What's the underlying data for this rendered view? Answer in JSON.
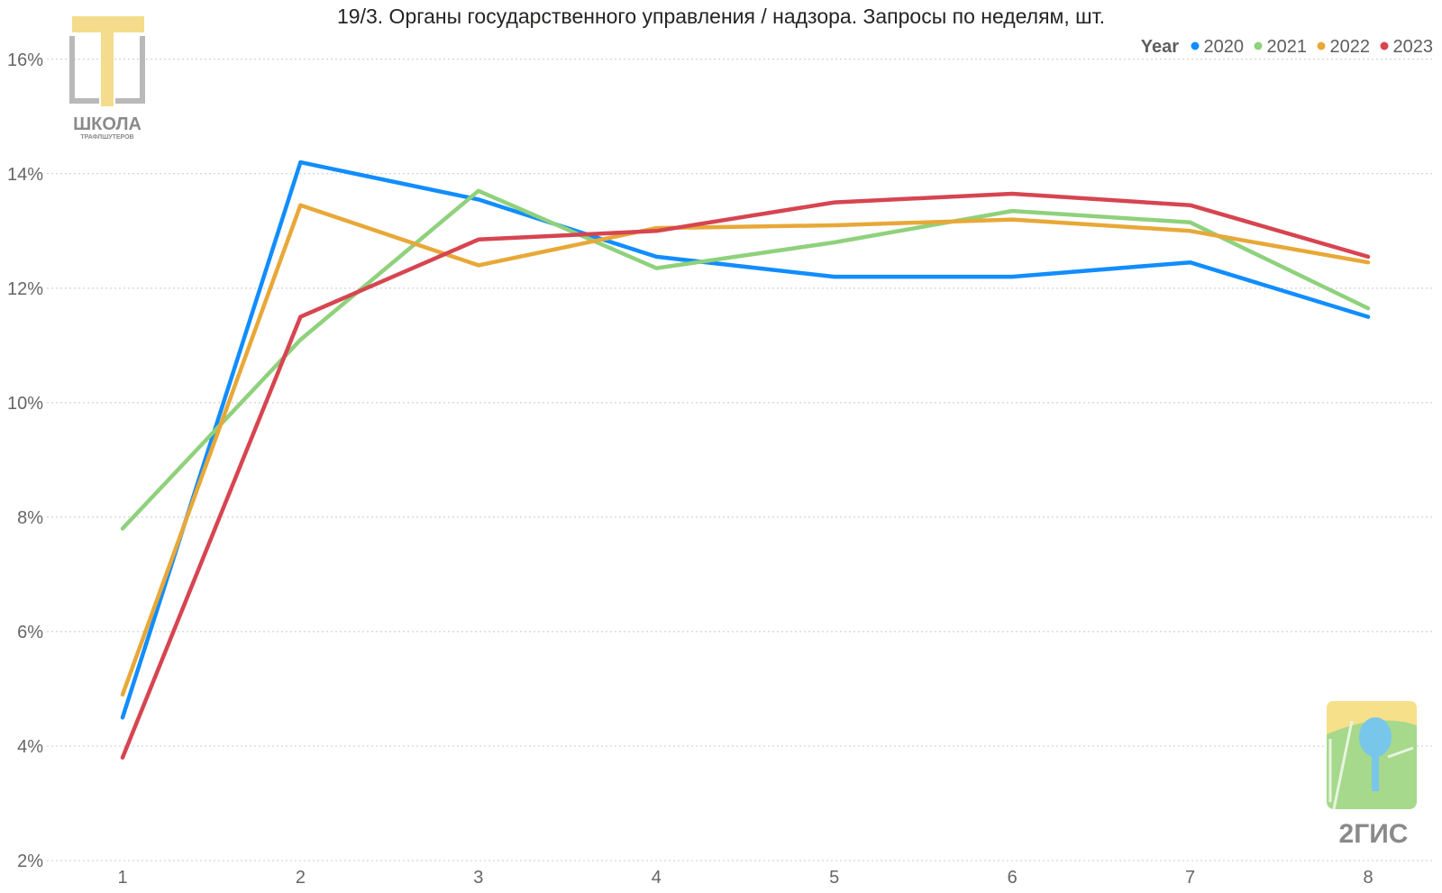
{
  "chart_data": {
    "type": "line",
    "title": "19/3. Органы государственного управления / надзора. Запросы по неделям, шт.",
    "xlabel": "",
    "ylabel": "",
    "x": [
      1,
      2,
      3,
      4,
      5,
      6,
      7,
      8
    ],
    "ylim": [
      2,
      16.5
    ],
    "yticks": [
      2,
      4,
      6,
      8,
      10,
      12,
      14,
      16
    ],
    "ytick_labels": [
      "2%",
      "4%",
      "6%",
      "8%",
      "10%",
      "12%",
      "14%",
      "16%"
    ],
    "grid": true,
    "legend": {
      "title": "Year",
      "placement": "top-right"
    },
    "series": [
      {
        "name": "2020",
        "color": "#118dff",
        "values": [
          4.5,
          14.2,
          13.55,
          12.55,
          12.2,
          12.2,
          12.45,
          11.5
        ]
      },
      {
        "name": "2021",
        "color": "#8fd17c",
        "values": [
          7.8,
          11.1,
          13.7,
          12.35,
          12.8,
          13.35,
          13.15,
          11.65
        ]
      },
      {
        "name": "2022",
        "color": "#e8a838",
        "values": [
          4.9,
          13.45,
          12.4,
          13.05,
          13.1,
          13.2,
          13.0,
          12.45
        ]
      },
      {
        "name": "2023",
        "color": "#d64550",
        "values": [
          3.8,
          11.5,
          12.85,
          13.0,
          13.5,
          13.65,
          13.45,
          12.55
        ]
      }
    ]
  },
  "logos": {
    "school": {
      "name": "ШКОЛА",
      "sub": "ТРАФЛШУТЕРОВ"
    },
    "dgis": {
      "name": "2ГИС"
    }
  }
}
